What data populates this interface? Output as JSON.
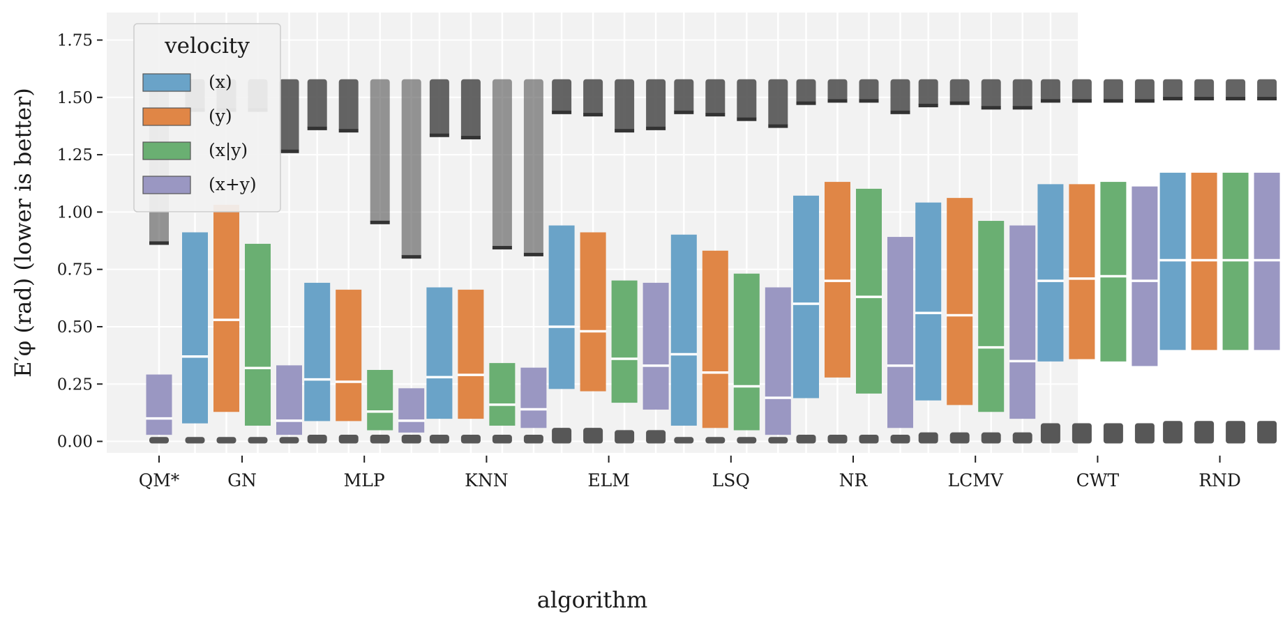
{
  "chart_data": {
    "type": "box",
    "title": "",
    "xlabel": "algorithm",
    "ylabel": "E′φ (rad) (lower is better)",
    "ylim": [
      -0.05,
      1.87
    ],
    "yticks": [
      "0.00",
      "0.25",
      "0.50",
      "0.75",
      "1.00",
      "1.25",
      "1.50",
      "1.75"
    ],
    "grid": true,
    "legend": {
      "title": "velocity",
      "placement": "top-left",
      "entries": [
        "(x)",
        "(y)",
        "(x|y)",
        "(x+y)"
      ]
    },
    "series_colors": [
      "#6aa3c8",
      "#e08646",
      "#6aaf72",
      "#9a97c2"
    ],
    "categories": [
      "QM*",
      "GN",
      "MLP",
      "KNN",
      "ELM",
      "LSQ",
      "NR",
      "LCMV",
      "CWT",
      "RND"
    ],
    "series": [
      {
        "name": "(x)",
        "boxes": [
          null,
          {
            "q1": 0.08,
            "median": 0.37,
            "q3": 0.91,
            "low_outliers": [
              0.0,
              0.01
            ],
            "high_outliers": [
              1.44,
              1.57
            ]
          },
          {
            "q1": 0.09,
            "median": 0.27,
            "q3": 0.69,
            "low_outliers": [
              0.0,
              0.02
            ],
            "high_outliers": [
              1.36,
              1.57
            ]
          },
          {
            "q1": 0.1,
            "median": 0.28,
            "q3": 0.67,
            "low_outliers": [
              0.0,
              0.02
            ],
            "high_outliers": [
              1.33,
              1.57
            ]
          },
          {
            "q1": 0.23,
            "median": 0.5,
            "q3": 0.94,
            "low_outliers": [
              0.0,
              0.05
            ],
            "high_outliers": [
              1.43,
              1.57
            ]
          },
          {
            "q1": 0.07,
            "median": 0.38,
            "q3": 0.9,
            "low_outliers": [
              0.0,
              0.01
            ],
            "high_outliers": [
              1.43,
              1.57
            ]
          },
          {
            "q1": 0.19,
            "median": 0.6,
            "q3": 1.07,
            "low_outliers": [
              0.0,
              0.02
            ],
            "high_outliers": [
              1.47,
              1.57
            ]
          },
          {
            "q1": 0.18,
            "median": 0.56,
            "q3": 1.04,
            "low_outliers": [
              0.0,
              0.03
            ],
            "high_outliers": [
              1.46,
              1.57
            ]
          },
          {
            "q1": 0.35,
            "median": 0.7,
            "q3": 1.12,
            "low_outliers": [
              0.0,
              0.07
            ],
            "high_outliers": [
              1.48,
              1.57
            ]
          },
          {
            "q1": 0.4,
            "median": 0.79,
            "q3": 1.17,
            "low_outliers": [
              0.0,
              0.08
            ],
            "high_outliers": [
              1.49,
              1.57
            ]
          }
        ]
      },
      {
        "name": "(y)",
        "boxes": [
          null,
          {
            "q1": 0.13,
            "median": 0.53,
            "q3": 1.03,
            "low_outliers": [
              0.0,
              0.01
            ],
            "high_outliers": [
              1.44,
              1.57
            ]
          },
          {
            "q1": 0.09,
            "median": 0.26,
            "q3": 0.66,
            "low_outliers": [
              0.0,
              0.02
            ],
            "high_outliers": [
              1.35,
              1.57
            ]
          },
          {
            "q1": 0.1,
            "median": 0.29,
            "q3": 0.66,
            "low_outliers": [
              0.0,
              0.02
            ],
            "high_outliers": [
              1.32,
              1.57
            ]
          },
          {
            "q1": 0.22,
            "median": 0.48,
            "q3": 0.91,
            "low_outliers": [
              0.0,
              0.05
            ],
            "high_outliers": [
              1.42,
              1.57
            ]
          },
          {
            "q1": 0.06,
            "median": 0.3,
            "q3": 0.83,
            "low_outliers": [
              0.0,
              0.01
            ],
            "high_outliers": [
              1.42,
              1.57
            ]
          },
          {
            "q1": 0.28,
            "median": 0.7,
            "q3": 1.13,
            "low_outliers": [
              0.0,
              0.02
            ],
            "high_outliers": [
              1.48,
              1.57
            ]
          },
          {
            "q1": 0.16,
            "median": 0.55,
            "q3": 1.06,
            "low_outliers": [
              0.0,
              0.03
            ],
            "high_outliers": [
              1.47,
              1.57
            ]
          },
          {
            "q1": 0.36,
            "median": 0.71,
            "q3": 1.12,
            "low_outliers": [
              0.0,
              0.07
            ],
            "high_outliers": [
              1.48,
              1.57
            ]
          },
          {
            "q1": 0.4,
            "median": 0.79,
            "q3": 1.17,
            "low_outliers": [
              0.0,
              0.08
            ],
            "high_outliers": [
              1.49,
              1.57
            ]
          }
        ]
      },
      {
        "name": "(x|y)",
        "boxes": [
          null,
          {
            "q1": 0.07,
            "median": 0.32,
            "q3": 0.86,
            "low_outliers": [
              0.0,
              0.01
            ],
            "high_outliers": [
              1.44,
              1.57
            ]
          },
          {
            "q1": 0.05,
            "median": 0.13,
            "q3": 0.31,
            "low_outliers": [
              0.0,
              0.02
            ],
            "high_outliers": [
              0.95,
              1.57
            ]
          },
          {
            "q1": 0.07,
            "median": 0.16,
            "q3": 0.34,
            "low_outliers": [
              0.0,
              0.02
            ],
            "high_outliers": [
              0.84,
              1.57
            ]
          },
          {
            "q1": 0.17,
            "median": 0.36,
            "q3": 0.7,
            "low_outliers": [
              0.0,
              0.04
            ],
            "high_outliers": [
              1.35,
              1.57
            ]
          },
          {
            "q1": 0.05,
            "median": 0.24,
            "q3": 0.73,
            "low_outliers": [
              0.0,
              0.01
            ],
            "high_outliers": [
              1.4,
              1.57
            ]
          },
          {
            "q1": 0.21,
            "median": 0.63,
            "q3": 1.1,
            "low_outliers": [
              0.0,
              0.02
            ],
            "high_outliers": [
              1.48,
              1.57
            ]
          },
          {
            "q1": 0.13,
            "median": 0.41,
            "q3": 0.96,
            "low_outliers": [
              0.0,
              0.03
            ],
            "high_outliers": [
              1.45,
              1.57
            ]
          },
          {
            "q1": 0.35,
            "median": 0.72,
            "q3": 1.13,
            "low_outliers": [
              0.0,
              0.07
            ],
            "high_outliers": [
              1.48,
              1.57
            ]
          },
          {
            "q1": 0.4,
            "median": 0.79,
            "q3": 1.17,
            "low_outliers": [
              0.0,
              0.08
            ],
            "high_outliers": [
              1.49,
              1.57
            ]
          }
        ]
      },
      {
        "name": "(x+y)",
        "boxes": [
          {
            "q1": 0.03,
            "median": 0.1,
            "q3": 0.29,
            "low_outliers": [
              0.0,
              0.01
            ],
            "high_outliers": [
              0.86,
              1.57
            ]
          },
          {
            "q1": 0.03,
            "median": 0.09,
            "q3": 0.33,
            "low_outliers": [
              0.0,
              0.01
            ],
            "high_outliers": [
              1.26,
              1.57
            ]
          },
          {
            "q1": 0.04,
            "median": 0.09,
            "q3": 0.23,
            "low_outliers": [
              0.0,
              0.02
            ],
            "high_outliers": [
              0.8,
              1.57
            ]
          },
          {
            "q1": 0.06,
            "median": 0.14,
            "q3": 0.32,
            "low_outliers": [
              0.0,
              0.02
            ],
            "high_outliers": [
              0.81,
              1.57
            ]
          },
          {
            "q1": 0.14,
            "median": 0.33,
            "q3": 0.69,
            "low_outliers": [
              0.0,
              0.04
            ],
            "high_outliers": [
              1.36,
              1.57
            ]
          },
          {
            "q1": 0.03,
            "median": 0.19,
            "q3": 0.67,
            "low_outliers": [
              0.0,
              0.01
            ],
            "high_outliers": [
              1.37,
              1.57
            ]
          },
          {
            "q1": 0.06,
            "median": 0.33,
            "q3": 0.89,
            "low_outliers": [
              0.0,
              0.02
            ],
            "high_outliers": [
              1.43,
              1.57
            ]
          },
          {
            "q1": 0.1,
            "median": 0.35,
            "q3": 0.94,
            "low_outliers": [
              0.0,
              0.03
            ],
            "high_outliers": [
              1.45,
              1.57
            ]
          },
          {
            "q1": 0.33,
            "median": 0.7,
            "q3": 1.11,
            "low_outliers": [
              0.0,
              0.07
            ],
            "high_outliers": [
              1.48,
              1.57
            ]
          },
          {
            "q1": 0.4,
            "median": 0.79,
            "q3": 1.17,
            "low_outliers": [
              0.0,
              0.08
            ],
            "high_outliers": [
              1.49,
              1.57
            ]
          }
        ]
      }
    ]
  }
}
